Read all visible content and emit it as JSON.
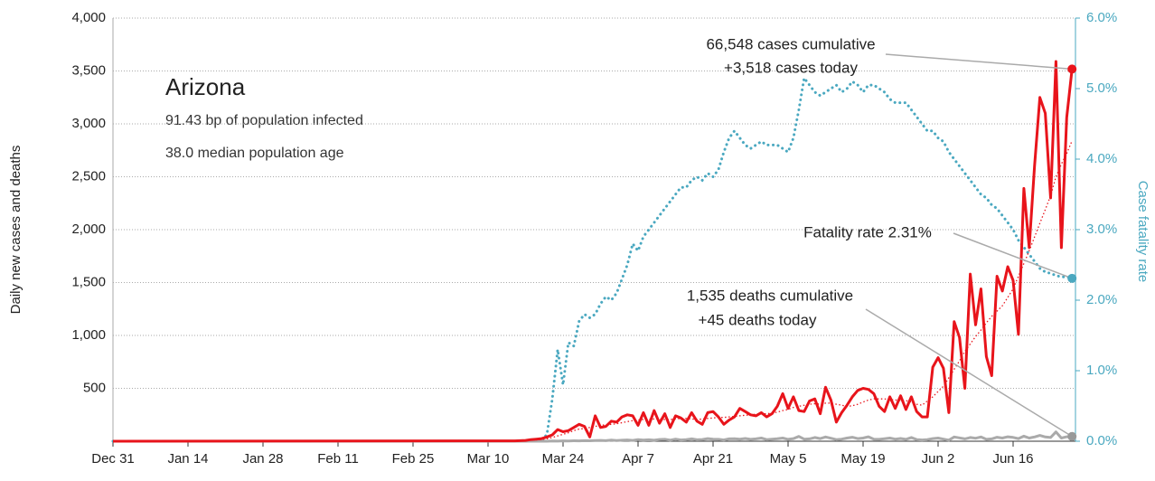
{
  "chart_data": {
    "type": "line",
    "title": "Arizona",
    "subtitle": [
      "91.43 bp of population infected",
      "38.0 median population age"
    ],
    "ylabel": "Daily new cases and deaths",
    "y2label": "Case fatality rate",
    "annotations": [
      "66,548 cases cumulative",
      "+3,518 cases today",
      "Fatality rate 2.31%",
      "1,535 deaths cumulative",
      "+45 deaths today"
    ],
    "grid": true,
    "ylim": [
      0,
      4000
    ],
    "yticks": [
      {
        "value": 500,
        "label": "500"
      },
      {
        "value": 1000,
        "label": "1,000"
      },
      {
        "value": 1500,
        "label": "1,500"
      },
      {
        "value": 2000,
        "label": "2,000"
      },
      {
        "value": 2500,
        "label": "2,500"
      },
      {
        "value": 3000,
        "label": "3,000"
      },
      {
        "value": 3500,
        "label": "3,500"
      },
      {
        "value": 4000,
        "label": "4,000"
      }
    ],
    "y2lim": [
      0,
      6
    ],
    "y2ticks": [
      {
        "value": 0,
        "label": "0.0%"
      },
      {
        "value": 1,
        "label": "1.0%"
      },
      {
        "value": 2,
        "label": "2.0%"
      },
      {
        "value": 3,
        "label": "3.0%"
      },
      {
        "value": 4,
        "label": "4.0%"
      },
      {
        "value": 5,
        "label": "5.0%"
      },
      {
        "value": 6,
        "label": "6.0%"
      }
    ],
    "xticks": [
      "Dec 31",
      "Jan 14",
      "Jan 28",
      "Feb 11",
      "Feb 25",
      "Mar 10",
      "Mar 24",
      "Apr 7",
      "Apr 21",
      "May 5",
      "May 19",
      "Jun 2",
      "Jun 16"
    ],
    "x": [
      "Dec 31",
      "Mar 15",
      "Mar 16",
      "Mar 17",
      "Mar 18",
      "Mar 19",
      "Mar 20",
      "Mar 21",
      "Mar 22",
      "Mar 23",
      "Mar 24",
      "Mar 25",
      "Mar 26",
      "Mar 27",
      "Mar 28",
      "Mar 29",
      "Mar 30",
      "Mar 31",
      "Apr 1",
      "Apr 2",
      "Apr 3",
      "Apr 4",
      "Apr 5",
      "Apr 6",
      "Apr 7",
      "Apr 8",
      "Apr 9",
      "Apr 10",
      "Apr 11",
      "Apr 12",
      "Apr 13",
      "Apr 14",
      "Apr 15",
      "Apr 16",
      "Apr 17",
      "Apr 18",
      "Apr 19",
      "Apr 20",
      "Apr 21",
      "Apr 22",
      "Apr 23",
      "Apr 24",
      "Apr 25",
      "Apr 26",
      "Apr 27",
      "Apr 28",
      "Apr 29",
      "Apr 30",
      "May 1",
      "May 2",
      "May 3",
      "May 4",
      "May 5",
      "May 6",
      "May 7",
      "May 8",
      "May 9",
      "May 10",
      "May 11",
      "May 12",
      "May 13",
      "May 14",
      "May 15",
      "May 16",
      "May 17",
      "May 18",
      "May 19",
      "May 20",
      "May 21",
      "May 22",
      "May 23",
      "May 24",
      "May 25",
      "May 26",
      "May 27",
      "May 28",
      "May 29",
      "May 30",
      "May 31",
      "Jun 1",
      "Jun 2",
      "Jun 3",
      "Jun 4",
      "Jun 5",
      "Jun 6",
      "Jun 7",
      "Jun 8",
      "Jun 9",
      "Jun 10",
      "Jun 11",
      "Jun 12",
      "Jun 13",
      "Jun 14",
      "Jun 15",
      "Jun 16",
      "Jun 17",
      "Jun 18",
      "Jun 19",
      "Jun 20",
      "Jun 21",
      "Jun 22",
      "Jun 23",
      "Jun 24",
      "Jun 25",
      "Jun 26",
      "Jun 27"
    ],
    "series": [
      {
        "name": "Daily new cases",
        "color": "#e8141b",
        "style": "solid",
        "axis": "y",
        "values": [
          0,
          3,
          5,
          8,
          15,
          20,
          25,
          40,
          60,
          110,
          90,
          100,
          130,
          160,
          140,
          40,
          240,
          130,
          140,
          190,
          180,
          230,
          250,
          240,
          150,
          270,
          150,
          290,
          170,
          260,
          130,
          240,
          220,
          180,
          270,
          190,
          160,
          270,
          280,
          230,
          160,
          200,
          230,
          310,
          280,
          250,
          240,
          270,
          230,
          260,
          330,
          450,
          310,
          420,
          290,
          280,
          380,
          400,
          260,
          510,
          390,
          180,
          270,
          340,
          420,
          480,
          500,
          490,
          450,
          330,
          280,
          420,
          310,
          430,
          300,
          420,
          280,
          230,
          230,
          700,
          790,
          690,
          270,
          1130,
          980,
          500,
          1580,
          1100,
          1440,
          800,
          620,
          1560,
          1420,
          1650,
          1520,
          1010,
          2390,
          1830,
          2600,
          3250,
          3100,
          2300,
          3590,
          1830,
          3060,
          3518
        ]
      },
      {
        "name": "Cases trend",
        "color": "#e8141b",
        "style": "dotted-thin",
        "axis": "y",
        "values": [
          0,
          2,
          4,
          6,
          9,
          13,
          17,
          23,
          35,
          50,
          65,
          80,
          100,
          115,
          120,
          130,
          140,
          150,
          155,
          160,
          165,
          175,
          185,
          195,
          200,
          205,
          205,
          210,
          210,
          205,
          205,
          210,
          215,
          215,
          210,
          205,
          210,
          215,
          220,
          225,
          225,
          230,
          235,
          240,
          245,
          250,
          255,
          260,
          260,
          265,
          275,
          290,
          300,
          320,
          330,
          340,
          350,
          355,
          350,
          360,
          360,
          350,
          340,
          330,
          335,
          350,
          370,
          390,
          400,
          400,
          400,
          395,
          390,
          385,
          385,
          370,
          350,
          340,
          380,
          420,
          470,
          520,
          600,
          680,
          760,
          850,
          920,
          990,
          1050,
          1120,
          1180,
          1230,
          1280,
          1360,
          1440,
          1560,
          1680,
          1800,
          1930,
          2060,
          2190,
          2320,
          2500,
          2620,
          2720,
          2840
        ]
      },
      {
        "name": "Daily new deaths",
        "color": "#aaaaaa",
        "style": "solid",
        "axis": "y",
        "values": [
          0,
          0,
          0,
          0,
          0,
          0,
          1,
          0,
          2,
          1,
          3,
          2,
          4,
          3,
          5,
          4,
          6,
          8,
          5,
          10,
          7,
          9,
          12,
          8,
          15,
          10,
          14,
          9,
          16,
          18,
          10,
          20,
          12,
          15,
          22,
          14,
          16,
          25,
          20,
          18,
          12,
          22,
          24,
          20,
          26,
          18,
          22,
          30,
          15,
          20,
          24,
          30,
          18,
          25,
          45,
          20,
          22,
          35,
          25,
          40,
          28,
          15,
          20,
          30,
          38,
          25,
          30,
          42,
          20,
          18,
          24,
          30,
          20,
          26,
          18,
          35,
          15,
          12,
          15,
          25,
          30,
          20,
          10,
          40,
          32,
          22,
          35,
          28,
          40,
          18,
          22,
          38,
          30,
          42,
          36,
          25,
          48,
          30,
          40,
          55,
          40,
          35,
          88,
          30,
          42,
          45
        ]
      },
      {
        "name": "Case fatality rate",
        "color": "#4aa8c0",
        "style": "dotted",
        "axis": "y2",
        "values": [
          0,
          0,
          0,
          0,
          0,
          0,
          0,
          0.1,
          0.6,
          1.3,
          0.8,
          1.4,
          1.35,
          1.7,
          1.8,
          1.75,
          1.8,
          1.95,
          2.05,
          2.0,
          2.1,
          2.3,
          2.5,
          2.8,
          2.7,
          2.9,
          3.0,
          3.1,
          3.2,
          3.3,
          3.4,
          3.5,
          3.6,
          3.6,
          3.7,
          3.75,
          3.7,
          3.8,
          3.75,
          3.85,
          4.1,
          4.3,
          4.4,
          4.3,
          4.2,
          4.15,
          4.2,
          4.25,
          4.2,
          4.2,
          4.2,
          4.15,
          4.1,
          4.3,
          4.7,
          5.15,
          5.05,
          4.95,
          4.9,
          4.95,
          5.0,
          5.05,
          4.95,
          5.0,
          5.1,
          5.05,
          4.95,
          5.05,
          5.05,
          5.0,
          4.95,
          4.85,
          4.8,
          4.8,
          4.8,
          4.7,
          4.6,
          4.5,
          4.4,
          4.4,
          4.3,
          4.25,
          4.1,
          4.0,
          3.9,
          3.8,
          3.7,
          3.6,
          3.5,
          3.45,
          3.35,
          3.3,
          3.2,
          3.1,
          3.0,
          2.85,
          2.75,
          2.65,
          2.55,
          2.45,
          2.4,
          2.38,
          2.35,
          2.33,
          2.33,
          2.31
        ]
      }
    ]
  }
}
